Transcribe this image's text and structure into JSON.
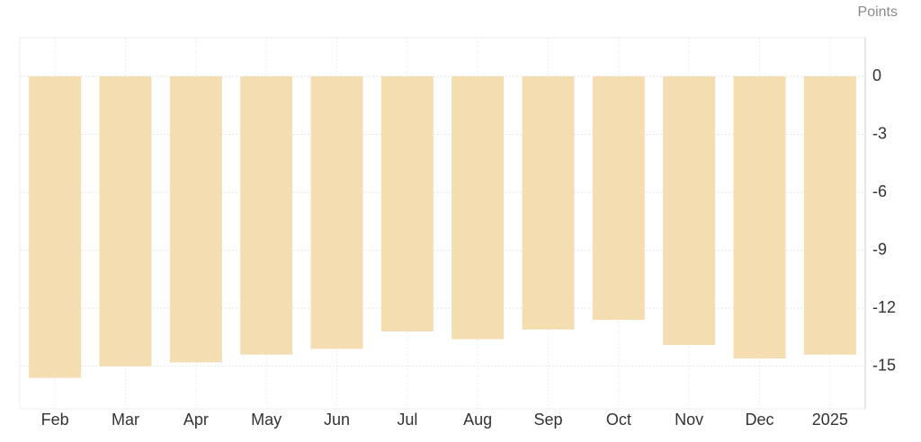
{
  "chart_data": {
    "type": "bar",
    "y_axis_label": "Points",
    "categories": [
      "Feb",
      "Mar",
      "Apr",
      "May",
      "Jun",
      "Jul",
      "Aug",
      "Sep",
      "Oct",
      "Nov",
      "Dec",
      "2025"
    ],
    "values": [
      -15.6,
      -15.0,
      -14.8,
      -14.4,
      -14.1,
      -13.2,
      -13.6,
      -13.1,
      -12.6,
      -13.9,
      -14.6,
      -14.4
    ],
    "color": "#f3ddb1",
    "ylim": [
      -17.2,
      2
    ],
    "yticks": [
      0,
      -3,
      -6,
      -9,
      -12,
      -15
    ],
    "grid": true
  }
}
